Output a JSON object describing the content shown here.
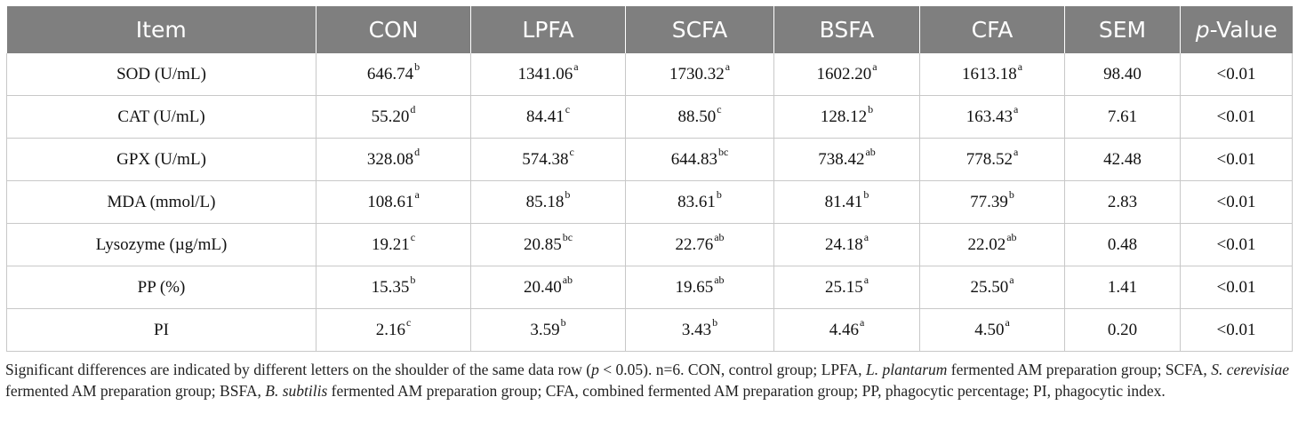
{
  "table": {
    "headers": [
      "Item",
      "CON",
      "LPFA",
      "SCFA",
      "BSFA",
      "CFA",
      "SEM",
      "-Value"
    ],
    "header_p_italic": "p",
    "rows": [
      {
        "item": "SOD (U/mL)",
        "cells": [
          [
            "646.74",
            "b"
          ],
          [
            "1341.06",
            "a"
          ],
          [
            "1730.32",
            "a"
          ],
          [
            "1602.20",
            "a"
          ],
          [
            "1613.18",
            "a"
          ]
        ],
        "sem": "98.40",
        "p": "<0.01"
      },
      {
        "item": "CAT (U/mL)",
        "cells": [
          [
            "55.20",
            "d"
          ],
          [
            "84.41",
            "c"
          ],
          [
            "88.50",
            "c"
          ],
          [
            "128.12",
            "b"
          ],
          [
            "163.43",
            "a"
          ]
        ],
        "sem": "7.61",
        "p": "<0.01"
      },
      {
        "item": "GPX (U/mL)",
        "cells": [
          [
            "328.08",
            "d"
          ],
          [
            "574.38",
            "c"
          ],
          [
            "644.83",
            "bc"
          ],
          [
            "738.42",
            "ab"
          ],
          [
            "778.52",
            "a"
          ]
        ],
        "sem": "42.48",
        "p": "<0.01"
      },
      {
        "item": "MDA (mmol/L)",
        "cells": [
          [
            "108.61",
            "a"
          ],
          [
            "85.18",
            "b"
          ],
          [
            "83.61",
            "b"
          ],
          [
            "81.41",
            "b"
          ],
          [
            "77.39",
            "b"
          ]
        ],
        "sem": "2.83",
        "p": "<0.01"
      },
      {
        "item": "Lysozyme (µg/mL)",
        "cells": [
          [
            "19.21",
            "c"
          ],
          [
            "20.85",
            "bc"
          ],
          [
            "22.76",
            "ab"
          ],
          [
            "24.18",
            "a"
          ],
          [
            "22.02",
            "ab"
          ]
        ],
        "sem": "0.48",
        "p": "<0.01"
      },
      {
        "item": "PP (%)",
        "cells": [
          [
            "15.35",
            "b"
          ],
          [
            "20.40",
            "ab"
          ],
          [
            "19.65",
            "ab"
          ],
          [
            "25.15",
            "a"
          ],
          [
            "25.50",
            "a"
          ]
        ],
        "sem": "1.41",
        "p": "<0.01"
      },
      {
        "item": "PI",
        "cells": [
          [
            "2.16",
            "c"
          ],
          [
            "3.59",
            "b"
          ],
          [
            "3.43",
            "b"
          ],
          [
            "4.46",
            "a"
          ],
          [
            "4.50",
            "a"
          ]
        ],
        "sem": "0.20",
        "p": "<0.01"
      }
    ]
  },
  "footnote": {
    "parts": [
      {
        "t": "Significant differences are indicated by different letters on the shoulder of the same data row (",
        "i": false
      },
      {
        "t": "p",
        "i": true
      },
      {
        "t": " < 0.05). n=6. CON, control group; LPFA, ",
        "i": false
      },
      {
        "t": "L. plantarum",
        "i": true
      },
      {
        "t": " fermented AM preparation group; SCFA, ",
        "i": false
      },
      {
        "t": "S. cerevisiae",
        "i": true
      },
      {
        "t": " fermented AM preparation group; BSFA, ",
        "i": false
      },
      {
        "t": "B. subtilis",
        "i": true
      },
      {
        "t": " fermented AM preparation group; CFA, combined fermented AM preparation group; PP, phagocytic percentage; PI, phagocytic index.",
        "i": false
      }
    ]
  }
}
